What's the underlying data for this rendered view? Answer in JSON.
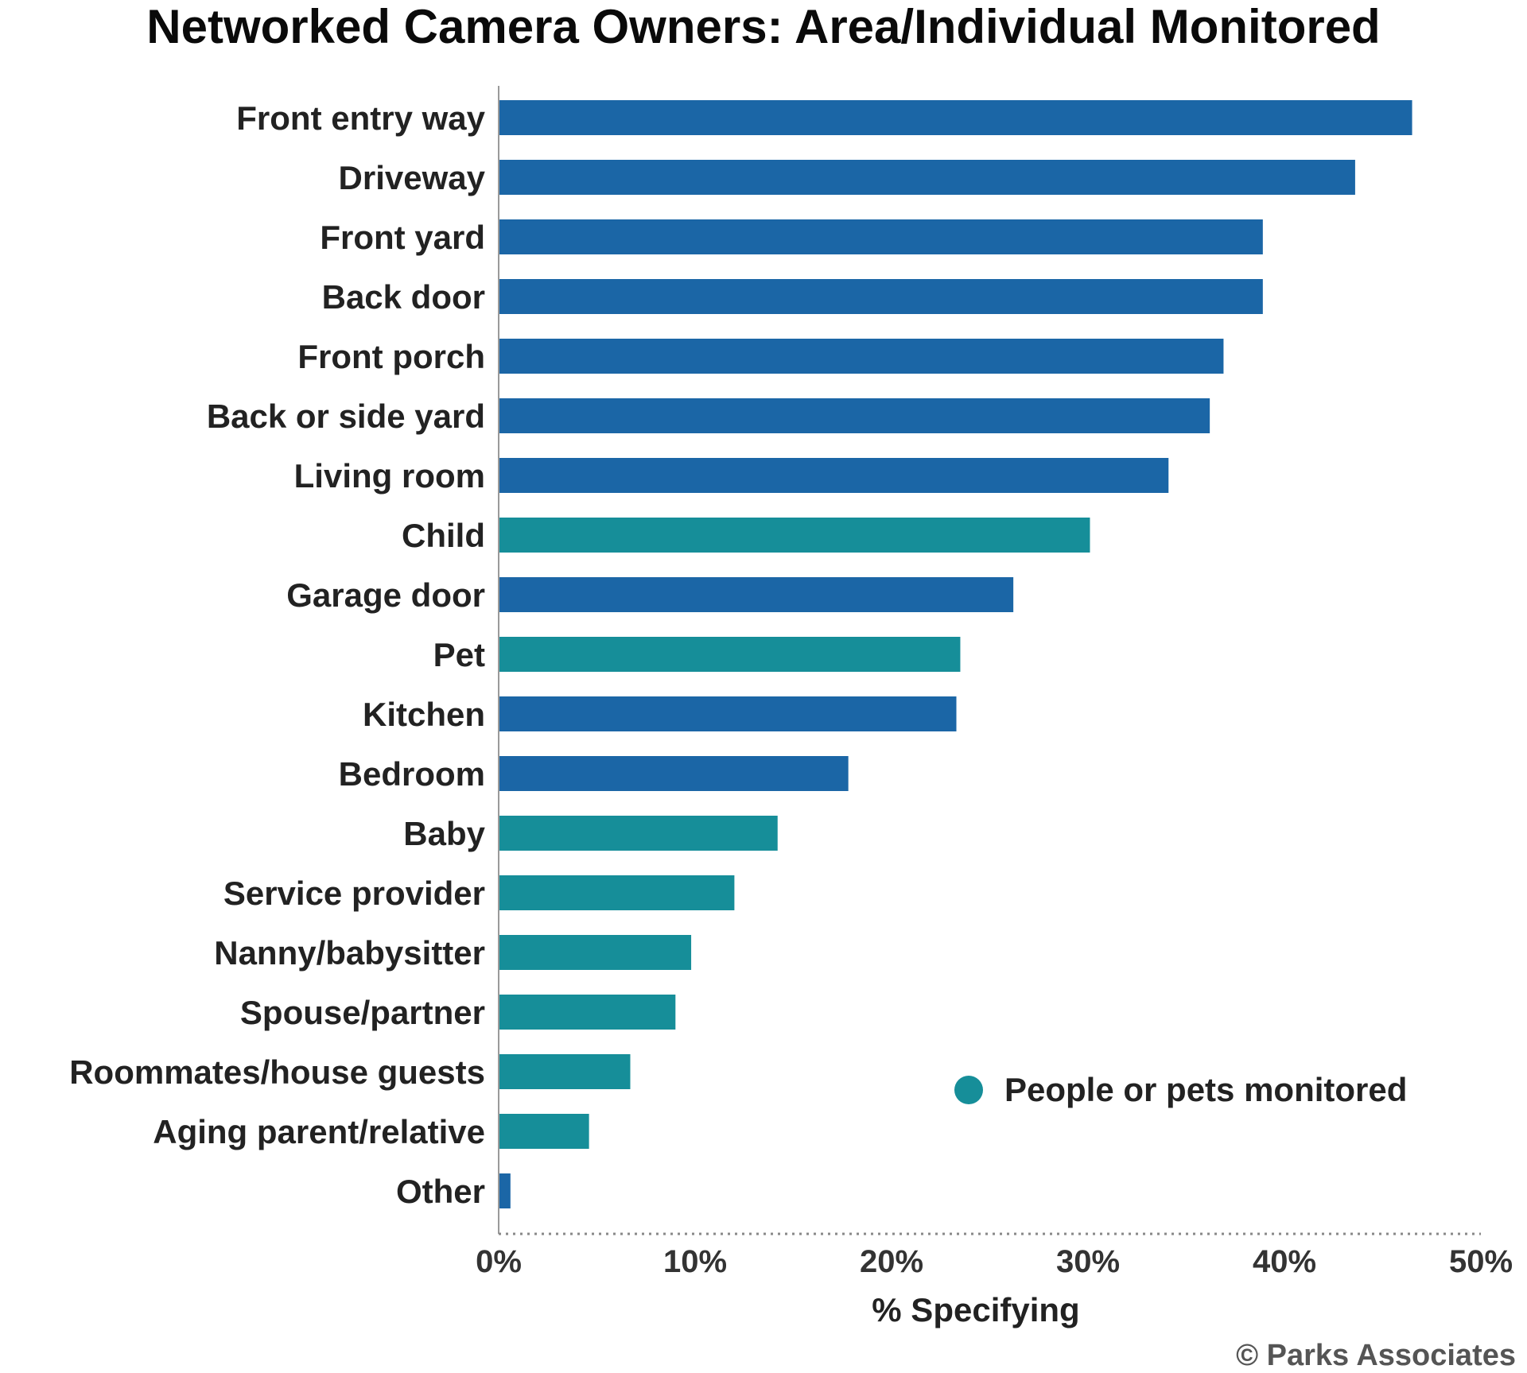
{
  "chart_data": {
    "type": "bar",
    "orientation": "horizontal",
    "title": "Networked Camera Owners: Area/Individual Monitored",
    "xlabel": "% Specifying",
    "ylabel": "",
    "xlim": [
      0,
      50
    ],
    "x_ticks": [
      "0%",
      "10%",
      "20%",
      "30%",
      "40%",
      "50%"
    ],
    "grid": false,
    "categories": [
      "Front entry way",
      "Driveway",
      "Front yard",
      "Back door",
      "Front porch",
      "Back or side yard",
      "Living room",
      "Child",
      "Garage door",
      "Pet",
      "Kitchen",
      "Bedroom",
      "Baby",
      "Service provider",
      "Nanny/babysitter",
      "Spouse/partner",
      "Roommates/house guests",
      "Aging parent/relative",
      "Other"
    ],
    "values": [
      46.5,
      43.6,
      38.9,
      38.9,
      36.9,
      36.2,
      34.1,
      30.1,
      26.2,
      23.5,
      23.3,
      17.8,
      14.2,
      12.0,
      9.8,
      9.0,
      6.7,
      4.6,
      0.6
    ],
    "groups": [
      "area",
      "area",
      "area",
      "area",
      "area",
      "area",
      "area",
      "people",
      "area",
      "people",
      "area",
      "area",
      "people",
      "people",
      "people",
      "people",
      "people",
      "people",
      "area"
    ],
    "colors": {
      "area": "#1b66a6",
      "people": "#168e99"
    },
    "legend": {
      "label": "People or pets monitored",
      "placement": "bottom-right"
    }
  },
  "footer": {
    "credit": "© Parks Associates"
  }
}
